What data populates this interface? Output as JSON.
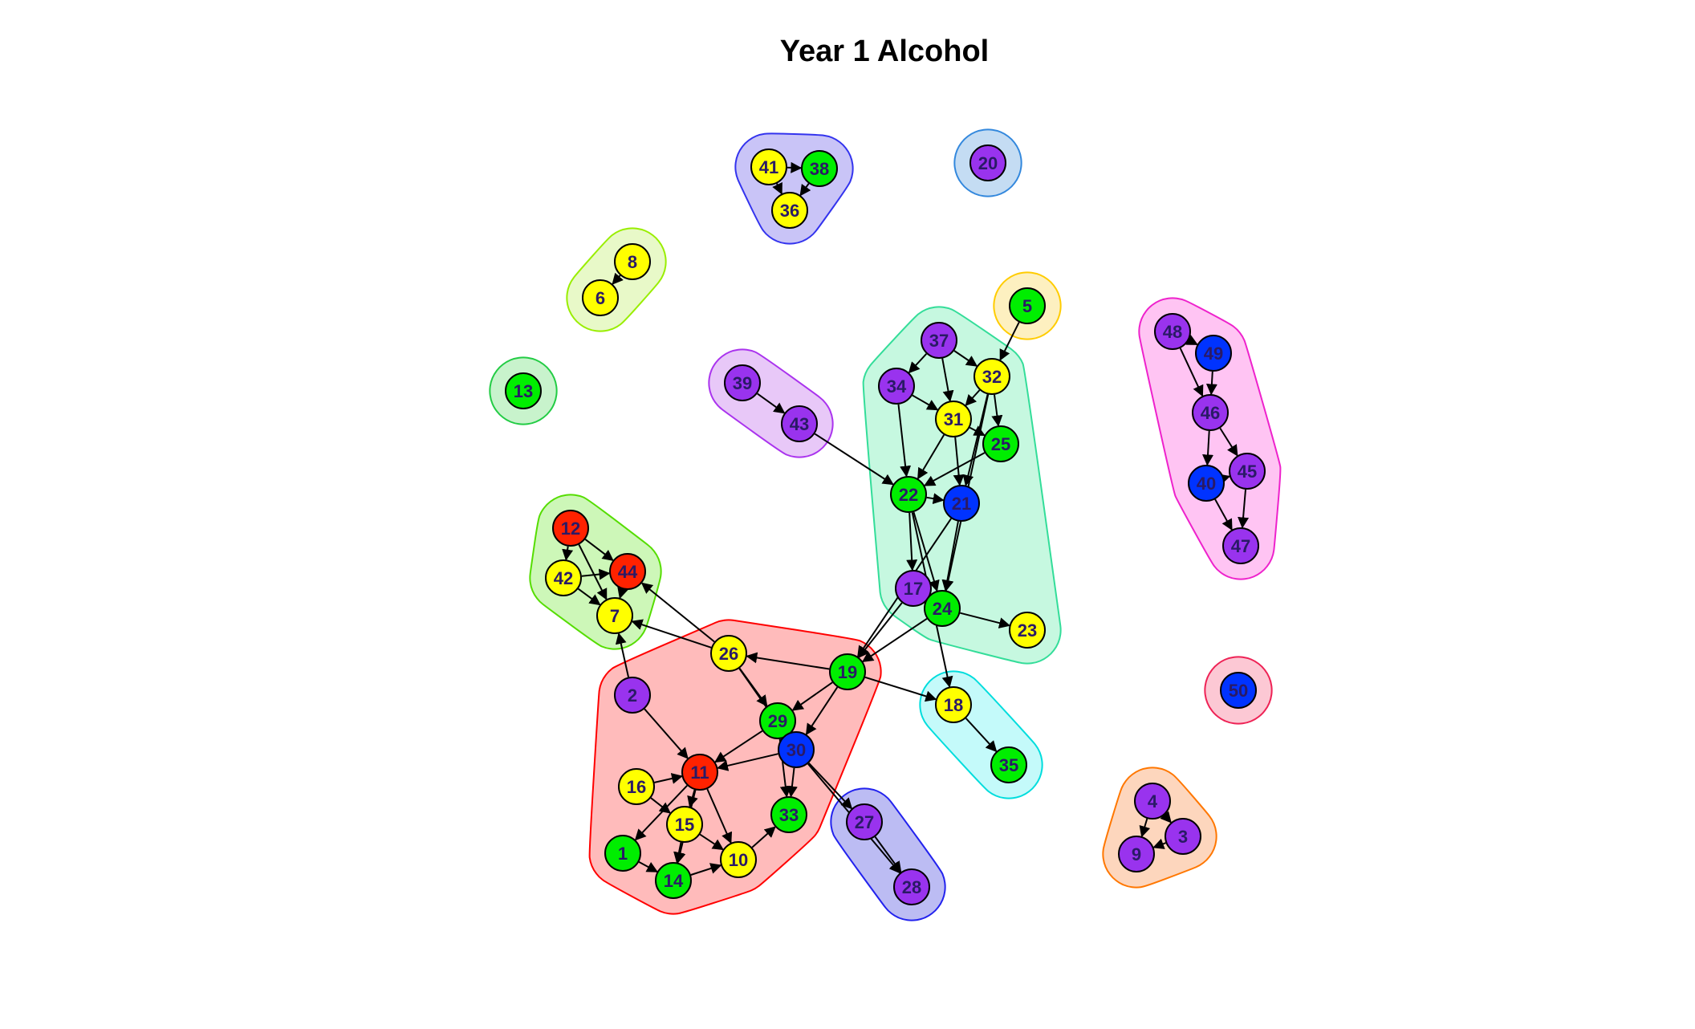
{
  "title": "Year 1 Alcohol",
  "colors": {
    "red": "#ff2200",
    "yellow": "#ffff00",
    "green": "#00ee00",
    "purple": "#9933ee",
    "blue": "#0033ff"
  },
  "groups": [
    {
      "id": "g-red",
      "color": "#ff0000",
      "fill": "#ffbbbb",
      "members": [
        "2",
        "11",
        "16",
        "15",
        "1",
        "14",
        "10",
        "26",
        "29",
        "30",
        "33",
        "19"
      ]
    },
    {
      "id": "g-mint",
      "color": "#33dd99",
      "fill": "#c6f8e0",
      "members": [
        "37",
        "34",
        "32",
        "31",
        "25",
        "22",
        "21",
        "17",
        "24",
        "23"
      ]
    },
    {
      "id": "g-lime",
      "color": "#55dd00",
      "fill": "#cdf7b8",
      "members": [
        "12",
        "42",
        "44",
        "7"
      ]
    },
    {
      "id": "g-pink",
      "color": "#ee22cc",
      "fill": "#ffc4f3",
      "members": [
        "48",
        "49",
        "46",
        "40",
        "45",
        "47"
      ]
    },
    {
      "id": "g-navy",
      "color": "#3333ee",
      "fill": "#c9c4f7",
      "members": [
        "41",
        "38",
        "36"
      ]
    },
    {
      "id": "g-lightblue",
      "color": "#3388dd",
      "fill": "#c4dcf3",
      "members": [
        "20"
      ]
    },
    {
      "id": "g-yellowgreen",
      "color": "#99ee00",
      "fill": "#e8f9c8",
      "members": [
        "8",
        "6"
      ]
    },
    {
      "id": "g-gold",
      "color": "#ffcc00",
      "fill": "#fdf0c0",
      "members": [
        "5"
      ]
    },
    {
      "id": "g-violet",
      "color": "#aa33ee",
      "fill": "#e8c8f8",
      "members": [
        "39",
        "43"
      ]
    },
    {
      "id": "g-green13",
      "color": "#22cc44",
      "fill": "#c8f3cc",
      "members": [
        "13"
      ]
    },
    {
      "id": "g-cyan",
      "color": "#00dddd",
      "fill": "#c4fafa",
      "members": [
        "18",
        "35"
      ]
    },
    {
      "id": "g-blue27",
      "color": "#2222ee",
      "fill": "#bcbcf3",
      "members": [
        "27",
        "28"
      ]
    },
    {
      "id": "g-orange",
      "color": "#ff7700",
      "fill": "#fdd6bd",
      "members": [
        "4",
        "3",
        "9"
      ]
    },
    {
      "id": "g-rose",
      "color": "#ee2255",
      "fill": "#fcc8d4",
      "members": [
        "50"
      ]
    }
  ],
  "nodes": [
    {
      "id": "1",
      "label": "1",
      "color": "green"
    },
    {
      "id": "2",
      "label": "2",
      "color": "purple"
    },
    {
      "id": "3",
      "label": "3",
      "color": "purple"
    },
    {
      "id": "4",
      "label": "4",
      "color": "purple"
    },
    {
      "id": "5",
      "label": "5",
      "color": "green"
    },
    {
      "id": "6",
      "label": "6",
      "color": "yellow"
    },
    {
      "id": "7",
      "label": "7",
      "color": "yellow"
    },
    {
      "id": "8",
      "label": "8",
      "color": "yellow"
    },
    {
      "id": "9",
      "label": "9",
      "color": "purple"
    },
    {
      "id": "10",
      "label": "10",
      "color": "yellow"
    },
    {
      "id": "11",
      "label": "11",
      "color": "red"
    },
    {
      "id": "12",
      "label": "12",
      "color": "red"
    },
    {
      "id": "13",
      "label": "13",
      "color": "green"
    },
    {
      "id": "14",
      "label": "14",
      "color": "green"
    },
    {
      "id": "15",
      "label": "15",
      "color": "yellow"
    },
    {
      "id": "16",
      "label": "16",
      "color": "yellow"
    },
    {
      "id": "17",
      "label": "17",
      "color": "purple"
    },
    {
      "id": "18",
      "label": "18",
      "color": "yellow"
    },
    {
      "id": "19",
      "label": "19",
      "color": "green"
    },
    {
      "id": "20",
      "label": "20",
      "color": "purple"
    },
    {
      "id": "21",
      "label": "21",
      "color": "blue"
    },
    {
      "id": "22",
      "label": "22",
      "color": "green"
    },
    {
      "id": "23",
      "label": "23",
      "color": "yellow"
    },
    {
      "id": "24",
      "label": "24",
      "color": "green"
    },
    {
      "id": "25",
      "label": "25",
      "color": "green"
    },
    {
      "id": "26",
      "label": "26",
      "color": "yellow"
    },
    {
      "id": "27",
      "label": "27",
      "color": "purple"
    },
    {
      "id": "28",
      "label": "28",
      "color": "purple"
    },
    {
      "id": "29",
      "label": "29",
      "color": "green"
    },
    {
      "id": "30",
      "label": "30",
      "color": "blue"
    },
    {
      "id": "31",
      "label": "31",
      "color": "yellow"
    },
    {
      "id": "32",
      "label": "32",
      "color": "yellow"
    },
    {
      "id": "33",
      "label": "33",
      "color": "green"
    },
    {
      "id": "34",
      "label": "34",
      "color": "purple"
    },
    {
      "id": "35",
      "label": "35",
      "color": "green"
    },
    {
      "id": "36",
      "label": "36",
      "color": "yellow"
    },
    {
      "id": "37",
      "label": "37",
      "color": "purple"
    },
    {
      "id": "38",
      "label": "38",
      "color": "green"
    },
    {
      "id": "39",
      "label": "39",
      "color": "purple"
    },
    {
      "id": "40",
      "label": "40",
      "color": "blue"
    },
    {
      "id": "41",
      "label": "41",
      "color": "yellow"
    },
    {
      "id": "42",
      "label": "42",
      "color": "yellow"
    },
    {
      "id": "43",
      "label": "43",
      "color": "purple"
    },
    {
      "id": "44",
      "label": "44",
      "color": "red"
    },
    {
      "id": "45",
      "label": "45",
      "color": "purple"
    },
    {
      "id": "46",
      "label": "46",
      "color": "purple"
    },
    {
      "id": "47",
      "label": "47",
      "color": "purple"
    },
    {
      "id": "48",
      "label": "48",
      "color": "purple"
    },
    {
      "id": "49",
      "label": "49",
      "color": "blue"
    },
    {
      "id": "50",
      "label": "50",
      "color": "blue"
    }
  ],
  "edges": [
    [
      "41",
      "38"
    ],
    [
      "41",
      "36"
    ],
    [
      "38",
      "36"
    ],
    [
      "8",
      "6"
    ],
    [
      "5",
      "32"
    ],
    [
      "39",
      "43"
    ],
    [
      "43",
      "22"
    ],
    [
      "37",
      "34"
    ],
    [
      "37",
      "32"
    ],
    [
      "37",
      "31"
    ],
    [
      "34",
      "31"
    ],
    [
      "34",
      "22"
    ],
    [
      "32",
      "31"
    ],
    [
      "32",
      "25"
    ],
    [
      "32",
      "21"
    ],
    [
      "32",
      "24"
    ],
    [
      "31",
      "25"
    ],
    [
      "31",
      "22"
    ],
    [
      "31",
      "21"
    ],
    [
      "25",
      "22"
    ],
    [
      "22",
      "21"
    ],
    [
      "22",
      "17"
    ],
    [
      "22",
      "24"
    ],
    [
      "22",
      "18"
    ],
    [
      "21",
      "24"
    ],
    [
      "21",
      "19"
    ],
    [
      "17",
      "24"
    ],
    [
      "17",
      "19"
    ],
    [
      "24",
      "23"
    ],
    [
      "24",
      "19"
    ],
    [
      "48",
      "49"
    ],
    [
      "48",
      "46"
    ],
    [
      "49",
      "46"
    ],
    [
      "46",
      "40"
    ],
    [
      "46",
      "45"
    ],
    [
      "40",
      "45"
    ],
    [
      "40",
      "47"
    ],
    [
      "45",
      "47"
    ],
    [
      "12",
      "42"
    ],
    [
      "12",
      "44"
    ],
    [
      "12",
      "7"
    ],
    [
      "42",
      "44"
    ],
    [
      "42",
      "7"
    ],
    [
      "44",
      "7"
    ],
    [
      "26",
      "44"
    ],
    [
      "26",
      "7"
    ],
    [
      "26",
      "29"
    ],
    [
      "26",
      "30"
    ],
    [
      "19",
      "26"
    ],
    [
      "19",
      "29"
    ],
    [
      "19",
      "30"
    ],
    [
      "19",
      "18"
    ],
    [
      "2",
      "7"
    ],
    [
      "2",
      "11"
    ],
    [
      "29",
      "11"
    ],
    [
      "29",
      "30"
    ],
    [
      "29",
      "33"
    ],
    [
      "30",
      "11"
    ],
    [
      "30",
      "33"
    ],
    [
      "30",
      "27"
    ],
    [
      "30",
      "28"
    ],
    [
      "27",
      "28"
    ],
    [
      "18",
      "35"
    ],
    [
      "16",
      "11"
    ],
    [
      "16",
      "15"
    ],
    [
      "11",
      "15"
    ],
    [
      "11",
      "1"
    ],
    [
      "11",
      "14"
    ],
    [
      "11",
      "10"
    ],
    [
      "15",
      "14"
    ],
    [
      "15",
      "10"
    ],
    [
      "1",
      "14"
    ],
    [
      "14",
      "10"
    ],
    [
      "10",
      "33"
    ],
    [
      "4",
      "3"
    ],
    [
      "4",
      "9"
    ],
    [
      "3",
      "9"
    ]
  ]
}
